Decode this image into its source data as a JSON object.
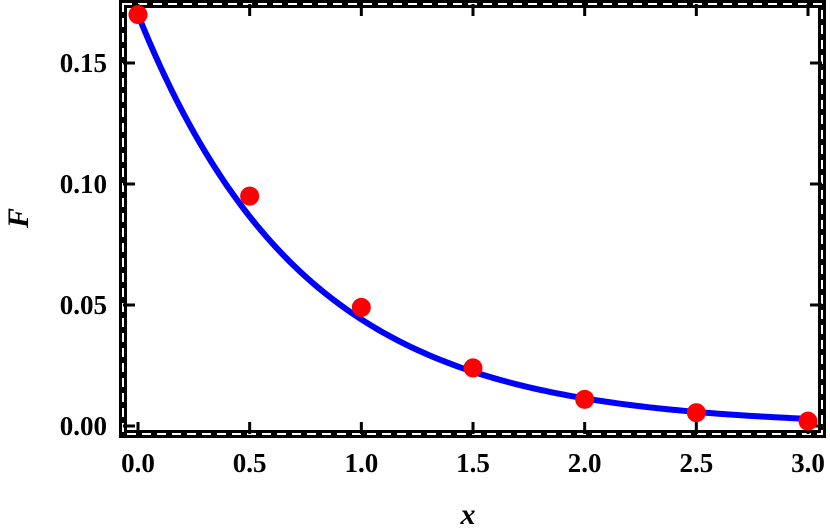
{
  "chart_data": {
    "type": "scatter",
    "xlabel": "x",
    "ylabel": "F",
    "xlim": [
      0.0,
      3.0
    ],
    "ylim": [
      0.0,
      0.175
    ],
    "x_ticks": [
      "0.0",
      "0.5",
      "1.0",
      "1.5",
      "2.0",
      "2.5",
      "3.0"
    ],
    "y_ticks": [
      "0.00",
      "0.05",
      "0.10",
      "0.15"
    ],
    "grid": false,
    "legend": "none",
    "series": [
      {
        "kind": "points",
        "color": "#ff0000",
        "x": [
          0.0,
          0.5,
          1.0,
          1.5,
          2.0,
          2.5,
          3.0
        ],
        "y": [
          0.17,
          0.095,
          0.049,
          0.024,
          0.011,
          0.0055,
          0.002
        ]
      },
      {
        "kind": "curve",
        "color": "#0000ff",
        "function": "0.17 * exp(-1.35 * x)",
        "x": [
          0.0,
          0.25,
          0.5,
          0.75,
          1.0,
          1.25,
          1.5,
          1.75,
          2.0,
          2.25,
          2.5,
          2.75,
          3.0
        ],
        "y": [
          0.17,
          0.121,
          0.0866,
          0.0618,
          0.0441,
          0.0314,
          0.0224,
          0.016,
          0.0114,
          0.0081,
          0.0058,
          0.0041,
          0.003
        ]
      }
    ]
  }
}
